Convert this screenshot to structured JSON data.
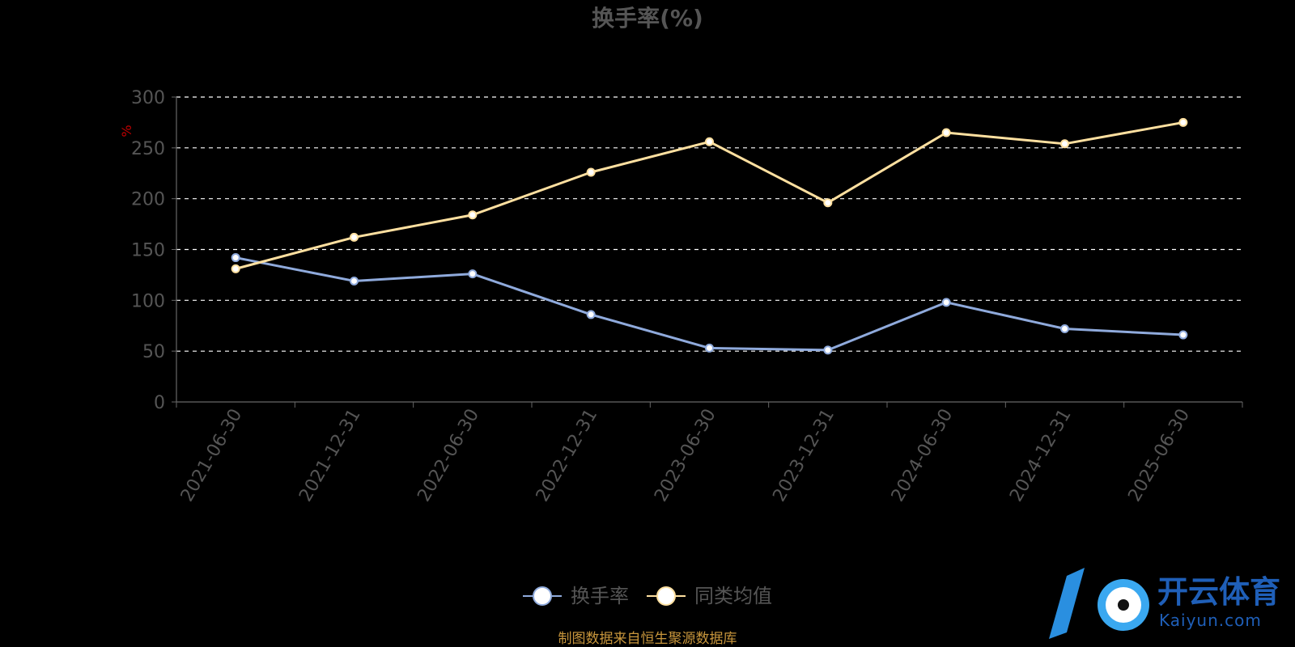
{
  "chart_data": {
    "type": "line",
    "title": "换手率(%)",
    "ylabel": "%",
    "ylim": [
      0,
      300
    ],
    "yticks": [
      "0",
      "50",
      "100",
      "150",
      "200",
      "250",
      "300"
    ],
    "categories": [
      "2021-06-30",
      "2021-12-31",
      "2022-06-30",
      "2022-12-31",
      "2023-06-30",
      "2023-12-31",
      "2024-06-30",
      "2024-12-31",
      "2025-06-30"
    ],
    "grid": true,
    "legend_position": "bottom",
    "series": [
      {
        "name": "换手率",
        "color": "#8faadc",
        "values": [
          142,
          119,
          126,
          86,
          53,
          51,
          98,
          72,
          66
        ]
      },
      {
        "name": "同类均值",
        "color": "#ffe0a0",
        "values": [
          131,
          162,
          184,
          226,
          256,
          196,
          265,
          254,
          275
        ]
      }
    ]
  },
  "source_note": "制图数据来自恒生聚源数据库",
  "watermark": {
    "cn": "开云体育",
    "en": "Kaiyun.com"
  }
}
